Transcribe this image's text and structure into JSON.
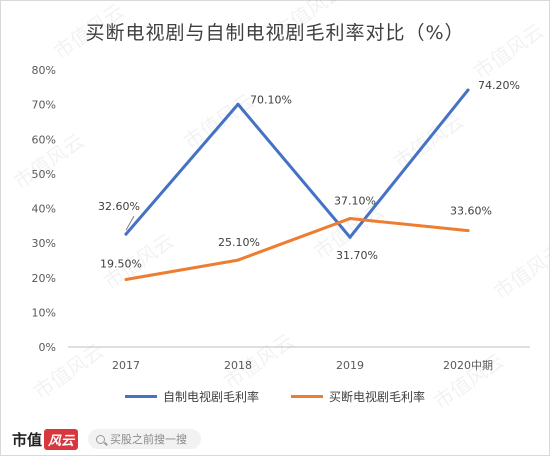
{
  "chart_data": {
    "type": "line",
    "title": "买断电视剧与自制电视剧毛利率对比（%）",
    "categories": [
      "2017",
      "2018",
      "2019",
      "2020中期"
    ],
    "yticks": [
      "0%",
      "10%",
      "20%",
      "30%",
      "40%",
      "50%",
      "60%",
      "70%",
      "80%"
    ],
    "ylim": [
      0,
      80
    ],
    "grid": false,
    "legend_position": "bottom",
    "series": [
      {
        "name": "自制电视剧毛利率",
        "color": "#4472c4",
        "values": [
          32.6,
          70.1,
          31.7,
          74.2
        ],
        "labels": [
          "32.60%",
          "70.10%",
          "31.70%",
          "74.20%"
        ]
      },
      {
        "name": "买断电视剧毛利率",
        "color": "#ed7d31",
        "values": [
          19.5,
          25.1,
          37.1,
          33.6
        ],
        "labels": [
          "19.50%",
          "25.10%",
          "37.10%",
          "33.60%"
        ]
      }
    ]
  },
  "watermark": "市值风云",
  "footer": {
    "brand_text": "市值",
    "brand_badge": "风云",
    "search_placeholder": "买股之前搜一搜",
    "search_icon": "search-icon"
  }
}
